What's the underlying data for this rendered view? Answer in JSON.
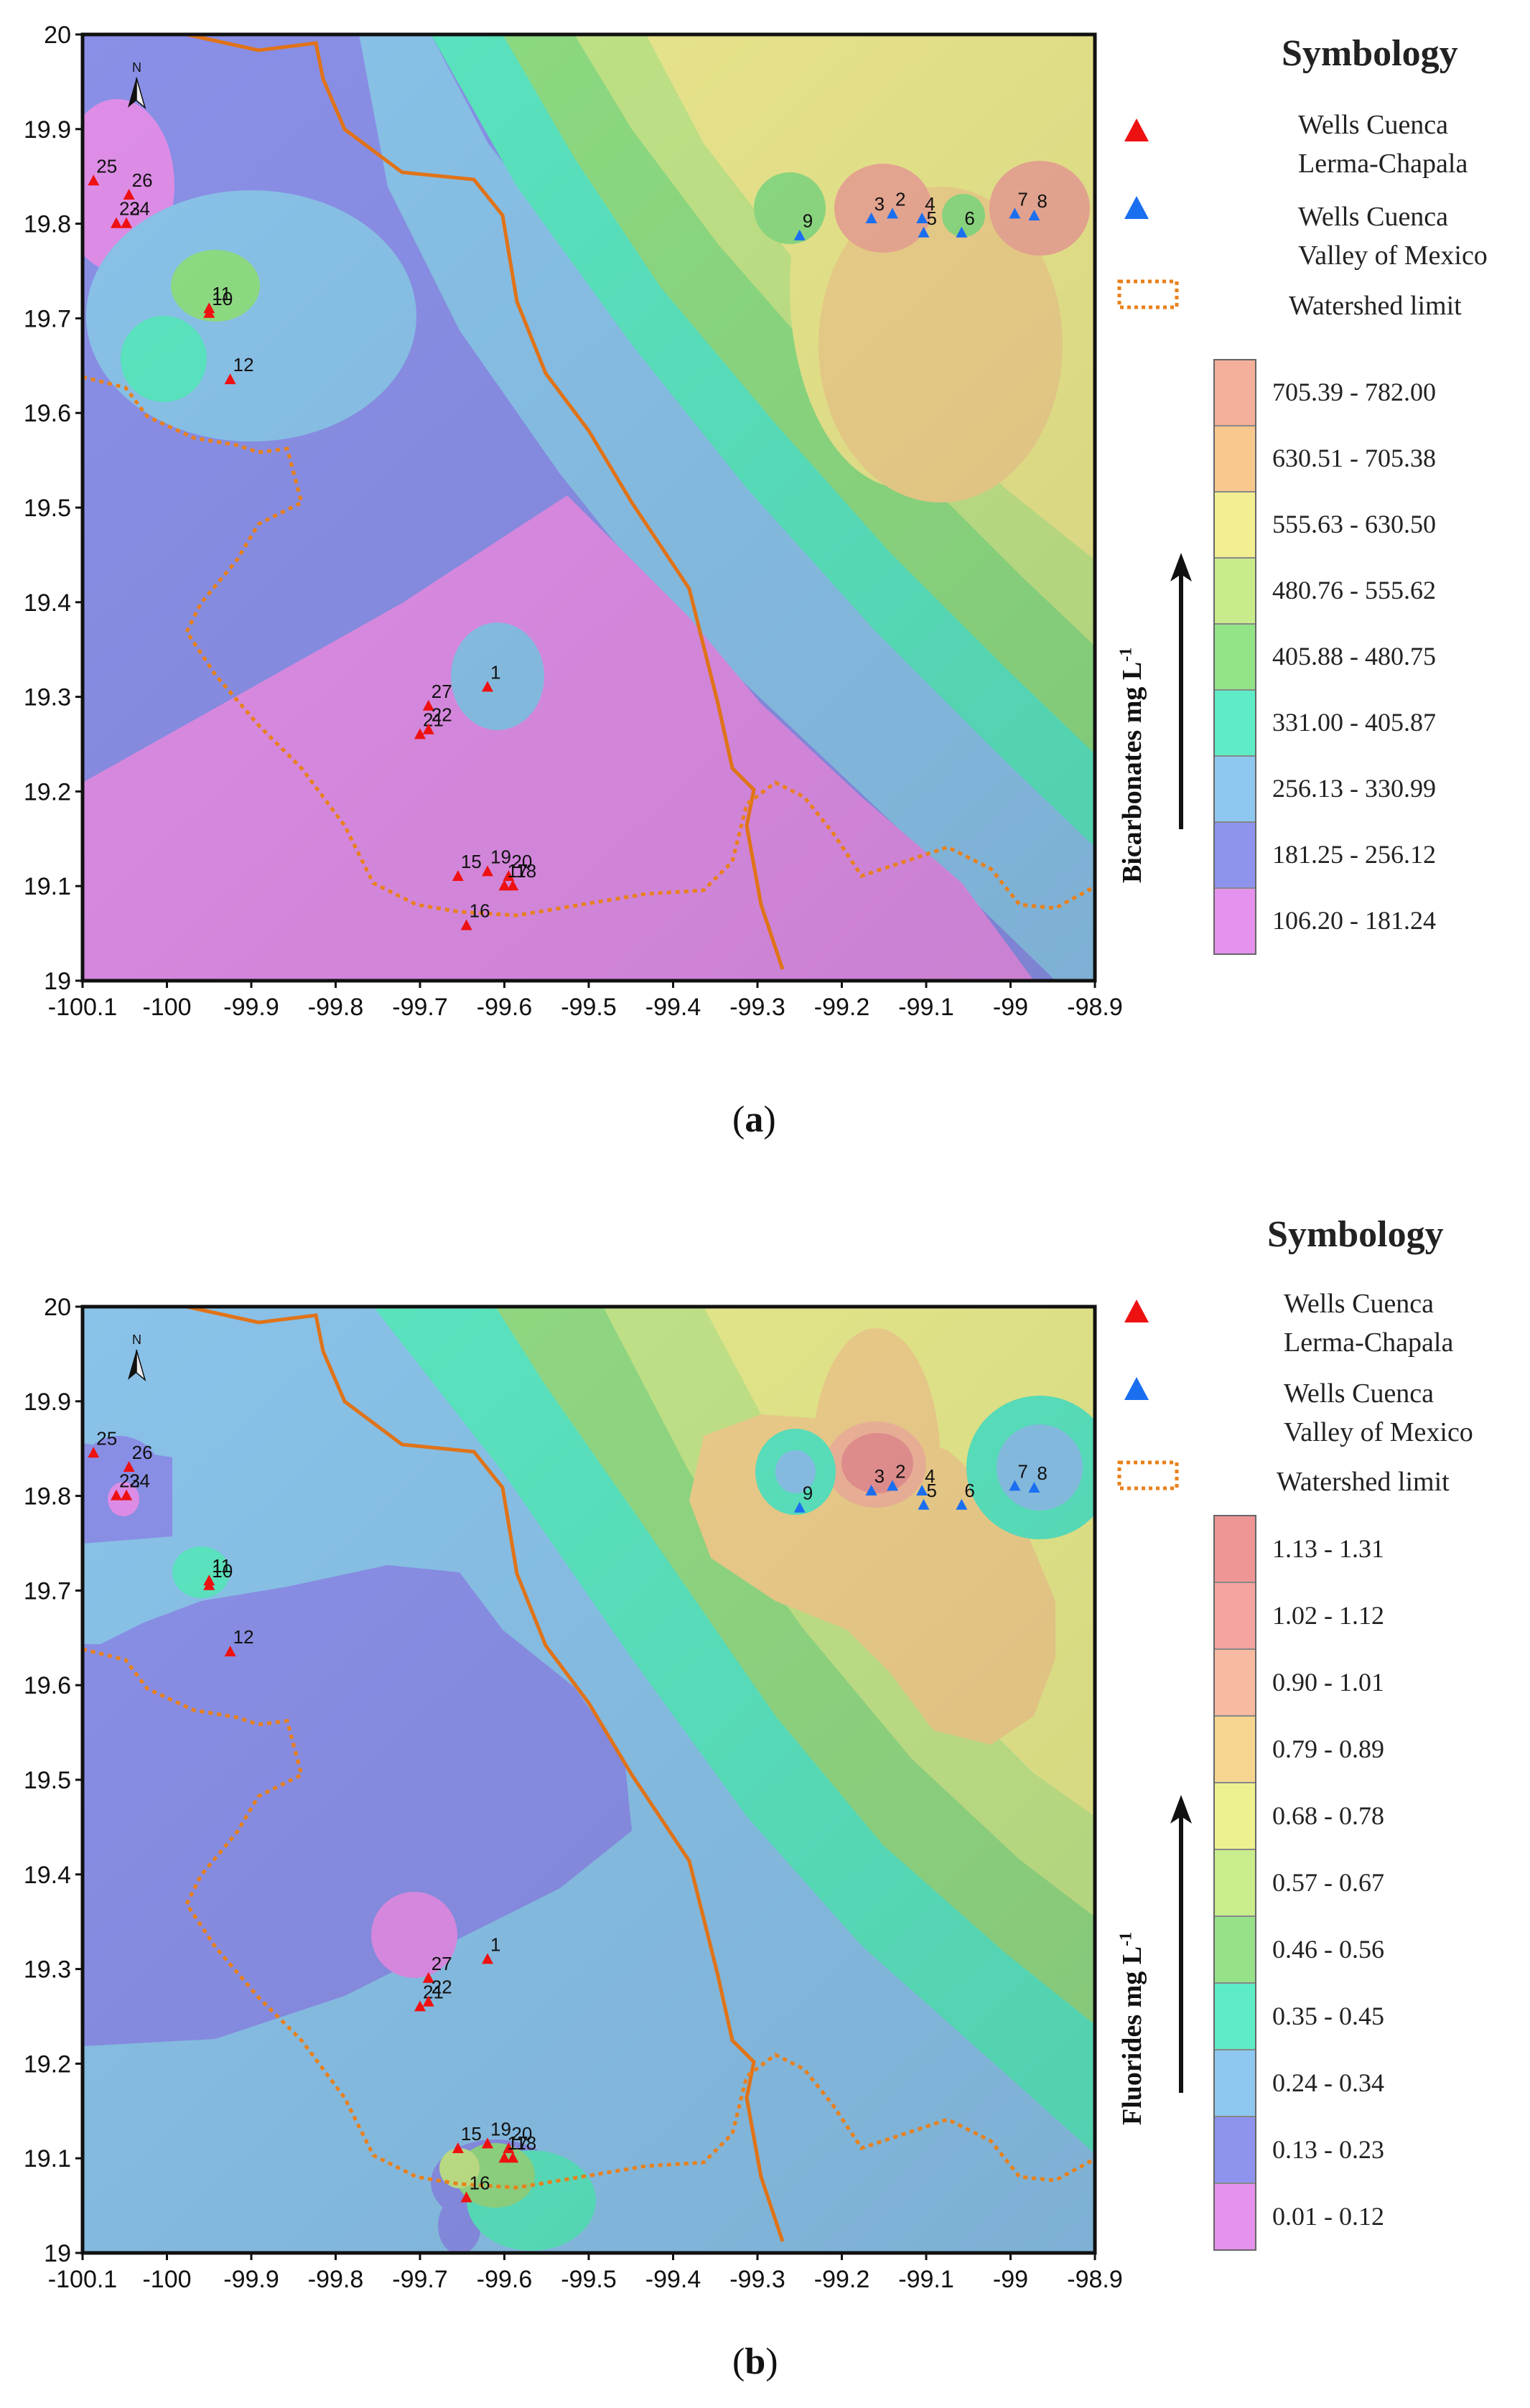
{
  "panel_a": {
    "symbology_title": "Symbology",
    "legend": {
      "lerma_line1": "Wells  Cuenca",
      "lerma_line2": "Lerma-Chapala",
      "valley_line1": "Wells Cuenca",
      "valley_line2": "Valley of Mexico",
      "watershed": "Watershed limit"
    },
    "scale_axis_label": "Bicarbonates mg L",
    "scale_axis_sup": "-1",
    "classes": [
      {
        "label": "705.39 - 782.00",
        "color": "#f4b09a"
      },
      {
        "label": "630.51 - 705.38",
        "color": "#f8c88e"
      },
      {
        "label": "555.63 - 630.50",
        "color": "#f2ef92"
      },
      {
        "label": "480.76 - 555.62",
        "color": "#c8ec8c"
      },
      {
        "label": "405.88 - 480.75",
        "color": "#93e387"
      },
      {
        "label": "331.00 - 405.87",
        "color": "#5eecc6"
      },
      {
        "label": "256.13 - 330.99",
        "color": "#8ec8f0"
      },
      {
        "label": "181.25 - 256.12",
        "color": "#8e94ee"
      },
      {
        "label": "106.20 - 181.24",
        "color": "#e592ee"
      }
    ],
    "caption_open": "(",
    "caption_letter": "a",
    "caption_close": ")"
  },
  "panel_b": {
    "symbology_title": "Symbology",
    "legend": {
      "lerma_line1": "Wells  Cuenca",
      "lerma_line2": "Lerma-Chapala",
      "valley_line1": "Wells Cuenca",
      "valley_line2": "Valley of Mexico",
      "watershed": "Watershed limit"
    },
    "scale_axis_label": "Fluorides mg L",
    "scale_axis_sup": "-1",
    "classes": [
      {
        "label": "1.13 - 1.31",
        "color": "#ee9696"
      },
      {
        "label": "1.02 - 1.12",
        "color": "#f5a4a0"
      },
      {
        "label": "0.90 - 1.01",
        "color": "#f8baa0"
      },
      {
        "label": "0.79 - 0.89",
        "color": "#f6d590"
      },
      {
        "label": "0.68 - 0.78",
        "color": "#eef190"
      },
      {
        "label": "0.57 - 0.67",
        "color": "#c9ec8d"
      },
      {
        "label": "0.46 - 0.56",
        "color": "#97e188"
      },
      {
        "label": "0.35 - 0.45",
        "color": "#5eecc6"
      },
      {
        "label": "0.24 - 0.34",
        "color": "#8ec8f0"
      },
      {
        "label": "0.13 - 0.23",
        "color": "#8e94ee"
      },
      {
        "label": "0.01 - 0.12",
        "color": "#e592ee"
      }
    ],
    "caption_open": "(",
    "caption_letter": "b",
    "caption_close": ")"
  },
  "axes": {
    "y_ticks": [
      "20",
      "19.9",
      "19.8",
      "19.7",
      "19.6",
      "19.5",
      "19.4",
      "19.3",
      "19.2",
      "19.1",
      "19"
    ],
    "x_ticks": [
      "-100.1",
      "-100",
      "-99.9",
      "-99.8",
      "-99.7",
      "-99.6",
      "-99.5",
      "-99.4",
      "-99.3",
      "-99.2",
      "-99.1",
      "-99",
      "-98.9"
    ],
    "xlim": [
      -100.1,
      -98.9
    ],
    "ylim": [
      19.0,
      20.0
    ]
  },
  "north_label": "N",
  "wells": [
    {
      "id": "25",
      "lon": -100.087,
      "lat": 19.845,
      "basin": "Lerma-Chapala"
    },
    {
      "id": "26",
      "lon": -100.045,
      "lat": 19.83,
      "basin": "Lerma-Chapala"
    },
    {
      "id": "23",
      "lon": -100.06,
      "lat": 19.8,
      "basin": "Lerma-Chapala"
    },
    {
      "id": "24",
      "lon": -100.048,
      "lat": 19.8,
      "basin": "Lerma-Chapala"
    },
    {
      "id": "11",
      "lon": -99.95,
      "lat": 19.71,
      "basin": "Lerma-Chapala"
    },
    {
      "id": "10",
      "lon": -99.95,
      "lat": 19.705,
      "basin": "Lerma-Chapala"
    },
    {
      "id": "12",
      "lon": -99.925,
      "lat": 19.635,
      "basin": "Lerma-Chapala"
    },
    {
      "id": "1",
      "lon": -99.62,
      "lat": 19.31,
      "basin": "Lerma-Chapala"
    },
    {
      "id": "27",
      "lon": -99.69,
      "lat": 19.29,
      "basin": "Lerma-Chapala"
    },
    {
      "id": "21",
      "lon": -99.7,
      "lat": 19.26,
      "basin": "Lerma-Chapala"
    },
    {
      "id": "22",
      "lon": -99.69,
      "lat": 19.265,
      "basin": "Lerma-Chapala"
    },
    {
      "id": "15",
      "lon": -99.655,
      "lat": 19.11,
      "basin": "Lerma-Chapala"
    },
    {
      "id": "19",
      "lon": -99.62,
      "lat": 19.115,
      "basin": "Lerma-Chapala"
    },
    {
      "id": "20",
      "lon": -99.595,
      "lat": 19.11,
      "basin": "Lerma-Chapala"
    },
    {
      "id": "17",
      "lon": -99.6,
      "lat": 19.1,
      "basin": "Lerma-Chapala"
    },
    {
      "id": "18",
      "lon": -99.59,
      "lat": 19.1,
      "basin": "Lerma-Chapala"
    },
    {
      "id": "16",
      "lon": -99.645,
      "lat": 19.058,
      "basin": "Lerma-Chapala"
    },
    {
      "id": "9",
      "lon": -99.25,
      "lat": 19.787,
      "basin": "Valley of Mexico"
    },
    {
      "id": "3",
      "lon": -99.165,
      "lat": 19.805,
      "basin": "Valley of Mexico"
    },
    {
      "id": "2",
      "lon": -99.14,
      "lat": 19.81,
      "basin": "Valley of Mexico"
    },
    {
      "id": "4",
      "lon": -99.105,
      "lat": 19.805,
      "basin": "Valley of Mexico"
    },
    {
      "id": "5",
      "lon": -99.103,
      "lat": 19.79,
      "basin": "Valley of Mexico"
    },
    {
      "id": "6",
      "lon": -99.058,
      "lat": 19.79,
      "basin": "Valley of Mexico"
    },
    {
      "id": "7",
      "lon": -98.995,
      "lat": 19.81,
      "basin": "Valley of Mexico"
    },
    {
      "id": "8",
      "lon": -98.972,
      "lat": 19.808,
      "basin": "Valley of Mexico"
    }
  ],
  "colors": {
    "lerma_marker": "#ee1111",
    "valley_marker": "#1a6ff0",
    "watershed_line": "#e9801a",
    "basin_line": "#e07318"
  }
}
